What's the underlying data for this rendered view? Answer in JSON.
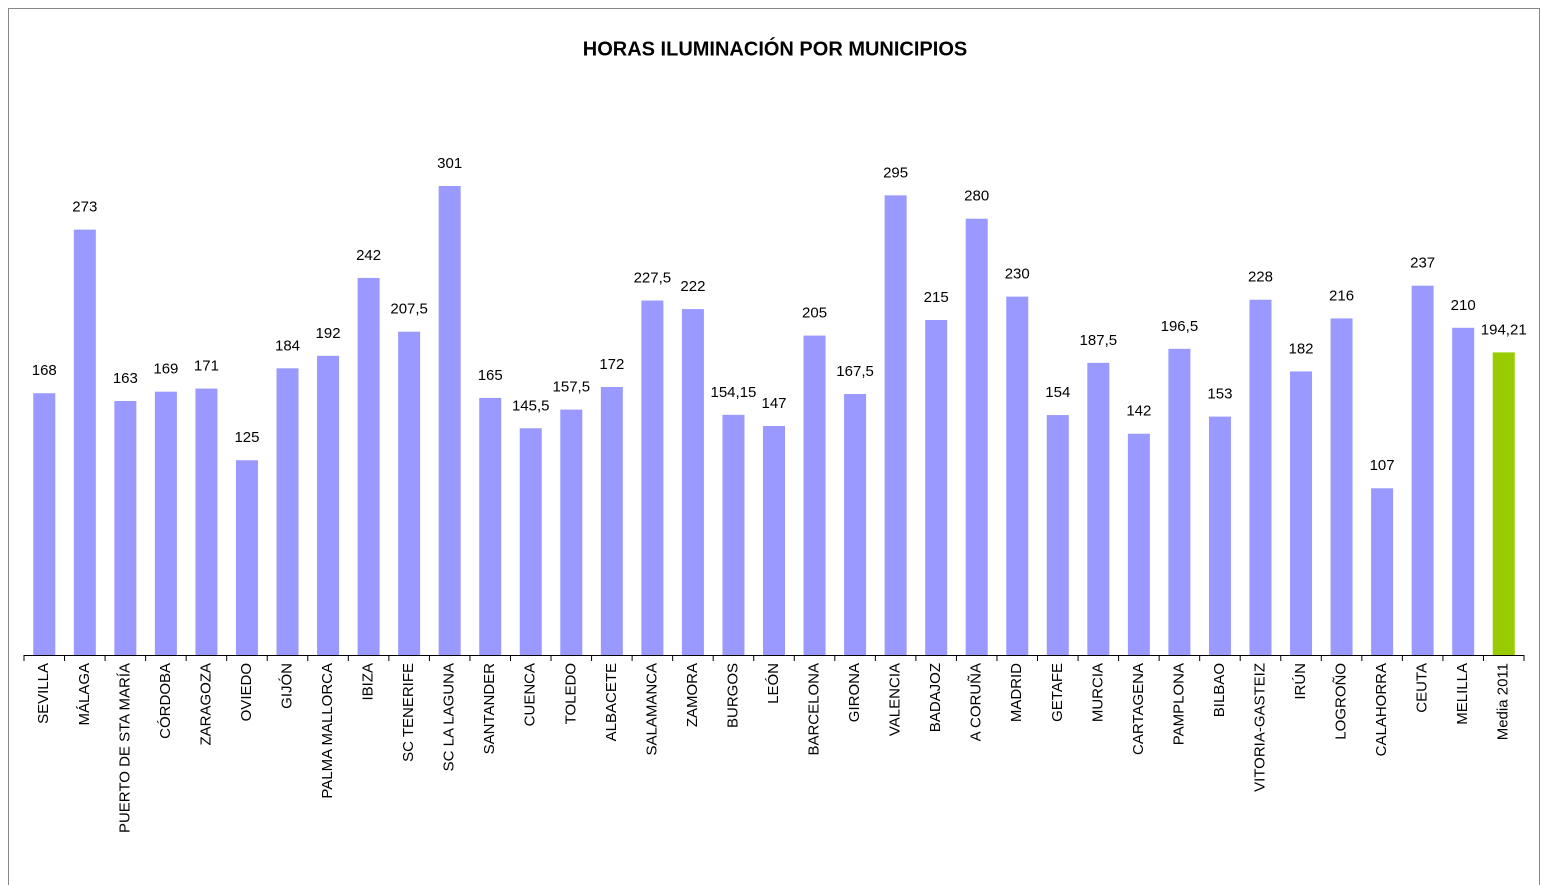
{
  "chart_data": {
    "type": "bar",
    "title": "HORAS ILUMINACIÓN POR MUNICIPIOS",
    "categories": [
      "SEVILLA",
      "MÁLAGA",
      "PUERTO DE STA MARÍA",
      "CÓRDOBA",
      "ZARAGOZA",
      "OVIEDO",
      "GIJÓN",
      "PALMA MALLORCA",
      "IBIZA",
      "SC TENERIFE",
      "SC LA LAGUNA",
      "SANTANDER",
      "CUENCA",
      "TOLEDO",
      "ALBACETE",
      "SALAMANCA",
      "ZAMORA",
      "BURGOS",
      "LEÓN",
      "BARCELONA",
      "GIRONA",
      "VALENCIA",
      "BADAJOZ",
      "A CORUÑA",
      "MADRID",
      "GETAFE",
      "MURCIA",
      "CARTAGENA",
      "PAMPLONA",
      "BILBAO",
      "VITORIA-GASTEIZ",
      "IRÚN",
      "LOGROÑO",
      "CALAHORRA",
      "CEUTA",
      "MELILLA",
      "Media 2011"
    ],
    "values": [
      168,
      273,
      163,
      169,
      171,
      125,
      184,
      192,
      242,
      207.5,
      301,
      165,
      145.5,
      157.5,
      172,
      227.5,
      222,
      154.15,
      147,
      205,
      167.5,
      295,
      215,
      280,
      230,
      154,
      187.5,
      142,
      196.5,
      153,
      228,
      182,
      216,
      107,
      237,
      210,
      194.21
    ],
    "value_labels": [
      "168",
      "273",
      "163",
      "169",
      "171",
      "125",
      "184",
      "192",
      "242",
      "207,5",
      "301",
      "165",
      "145,5",
      "157,5",
      "172",
      "227,5",
      "222",
      "154,15",
      "147",
      "205",
      "167,5",
      "295",
      "215",
      "280",
      "230",
      "154",
      "187,5",
      "142",
      "196,5",
      "153",
      "228",
      "182",
      "216",
      "107",
      "237",
      "210",
      "194,21"
    ],
    "colors": [
      "#9999ff",
      "#9999ff",
      "#9999ff",
      "#9999ff",
      "#9999ff",
      "#9999ff",
      "#9999ff",
      "#9999ff",
      "#9999ff",
      "#9999ff",
      "#9999ff",
      "#9999ff",
      "#9999ff",
      "#9999ff",
      "#9999ff",
      "#9999ff",
      "#9999ff",
      "#9999ff",
      "#9999ff",
      "#9999ff",
      "#9999ff",
      "#9999ff",
      "#9999ff",
      "#9999ff",
      "#9999ff",
      "#9999ff",
      "#9999ff",
      "#9999ff",
      "#9999ff",
      "#9999ff",
      "#9999ff",
      "#9999ff",
      "#9999ff",
      "#9999ff",
      "#9999ff",
      "#9999ff",
      "#99cc00"
    ]
  }
}
